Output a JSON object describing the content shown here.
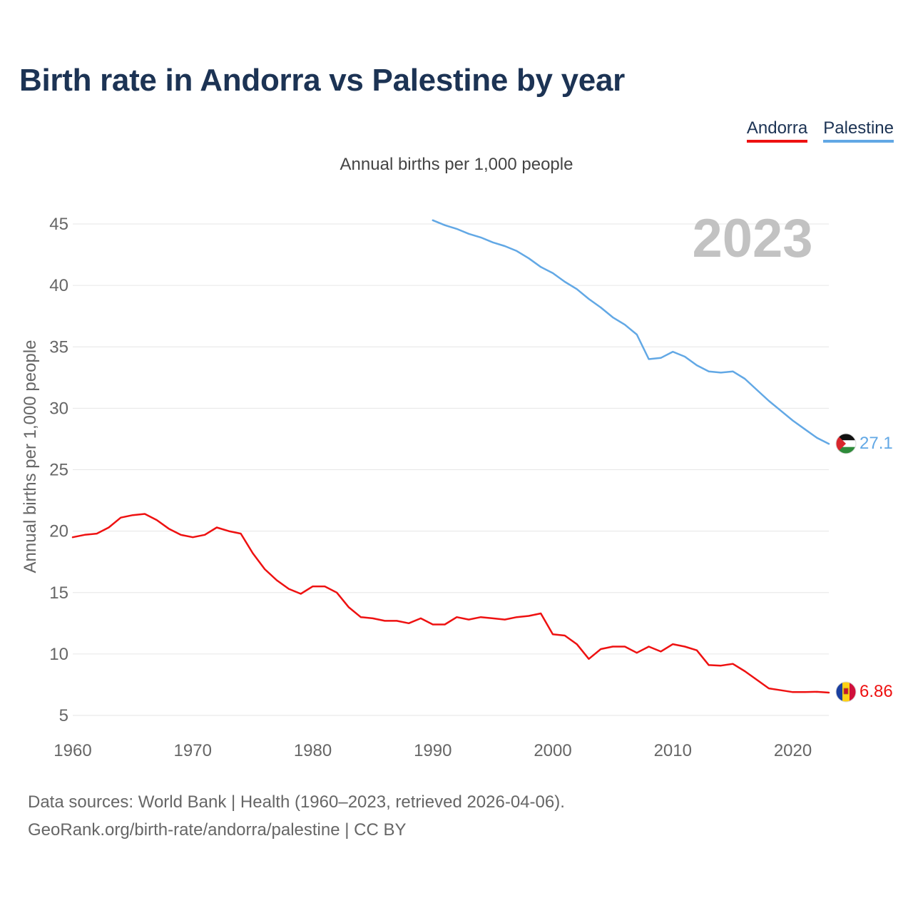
{
  "title": "Birth rate in Andorra vs Palestine by year",
  "legend": [
    {
      "label": "Andorra",
      "color": "#ee1111"
    },
    {
      "label": "Palestine",
      "color": "#62a8e5"
    }
  ],
  "subtitle": "Annual births per 1,000 people",
  "year_watermark": "2023",
  "footer": {
    "line1": "Data sources: World Bank | Health (1960–2023, retrieved 2026-04-06).",
    "line2": "GeoRank.org/birth-rate/andorra/palestine | CC BY"
  },
  "chart_data": {
    "type": "line",
    "title": "Birth rate in Andorra vs Palestine by year",
    "xlabel": "",
    "ylabel": "Annual births per 1,000 people",
    "xlim": [
      1960,
      2023
    ],
    "ylim": [
      4,
      47
    ],
    "xticks": [
      1960,
      1970,
      1980,
      1990,
      2000,
      2010,
      2020
    ],
    "yticks": [
      5,
      10,
      15,
      20,
      25,
      30,
      35,
      40,
      45
    ],
    "grid": true,
    "legend_position": "top-right",
    "series": [
      {
        "name": "Andorra",
        "color": "#ee1111",
        "end_label": "6.86",
        "x_start": 1960,
        "values": [
          19.5,
          19.7,
          19.8,
          20.3,
          21.1,
          21.3,
          21.4,
          20.9,
          20.2,
          19.7,
          19.5,
          19.7,
          20.3,
          20.0,
          19.8,
          18.2,
          16.9,
          16.0,
          15.3,
          14.9,
          15.5,
          15.5,
          15.0,
          13.8,
          13.0,
          12.9,
          12.7,
          12.7,
          12.5,
          12.9,
          12.4,
          12.4,
          13.0,
          12.8,
          13.0,
          12.9,
          12.8,
          13.0,
          13.1,
          13.3,
          11.6,
          11.5,
          10.8,
          9.6,
          10.4,
          10.6,
          10.6,
          10.1,
          10.6,
          10.2,
          10.8,
          10.6,
          10.3,
          9.1,
          9.05,
          9.2,
          8.6,
          7.9,
          7.2,
          7.05,
          6.9,
          6.9,
          6.92,
          6.86
        ]
      },
      {
        "name": "Palestine",
        "color": "#62a8e5",
        "end_label": "27.1",
        "x_start": 1990,
        "values": [
          45.3,
          44.9,
          44.6,
          44.2,
          43.9,
          43.5,
          43.2,
          42.8,
          42.2,
          41.5,
          41.0,
          40.3,
          39.7,
          38.9,
          38.2,
          37.4,
          36.8,
          36.0,
          34.0,
          34.1,
          34.6,
          34.2,
          33.5,
          33.0,
          32.9,
          33.0,
          32.4,
          31.5,
          30.6,
          29.8,
          29.0,
          28.3,
          27.6,
          27.1
        ]
      }
    ]
  }
}
